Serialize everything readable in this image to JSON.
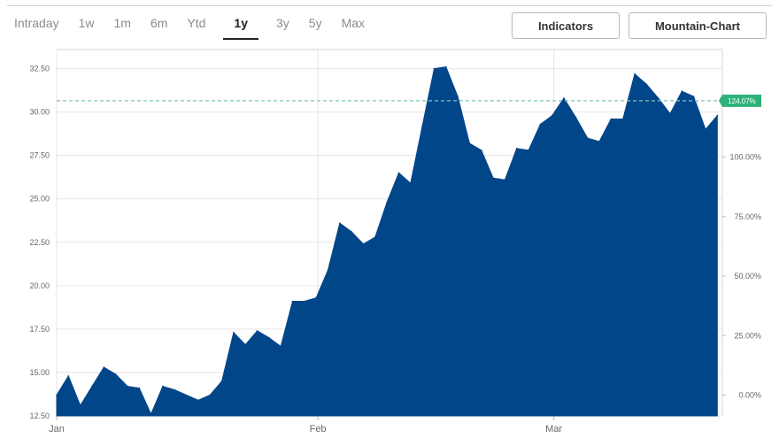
{
  "tabs": [
    {
      "label": "Intraday"
    },
    {
      "label": "1w"
    },
    {
      "label": "1m"
    },
    {
      "label": "6m"
    },
    {
      "label": "Ytd"
    },
    {
      "label": "1y"
    },
    {
      "label": "3y"
    },
    {
      "label": "5y"
    },
    {
      "label": "Max"
    }
  ],
  "active_tab": "1y",
  "buttons": {
    "indicators": "Indicators",
    "chart_type": "Mountain-Chart"
  },
  "colors": {
    "area": "#02468a",
    "reference_line": "#7fc4bd",
    "badge": "#2db37a",
    "grid": "#e6e6e6"
  },
  "chart_data": {
    "type": "area",
    "title": "",
    "xlabel": "",
    "ylabel": "",
    "ylim": [
      12.5,
      33.6
    ],
    "y_ticks": [
      "12.50",
      "15.00",
      "17.50",
      "20.00",
      "22.50",
      "25.00",
      "27.50",
      "30.00",
      "32.50"
    ],
    "y2_ticks": [
      "0.00%",
      "25.00%",
      "50.00%",
      "75.00%",
      "100.00%"
    ],
    "x_ticks": [
      {
        "label": "Jan",
        "day": 0
      },
      {
        "label": "Feb",
        "day": 31
      },
      {
        "label": "Mar",
        "day": 59
      }
    ],
    "x_range_days": [
      0,
      79
    ],
    "reference_value": 30.65,
    "current_change_label": "124.07%",
    "grid": true,
    "x": [
      0,
      1.4,
      2.8,
      4.2,
      5.6,
      7,
      8.4,
      9.8,
      11.2,
      12.6,
      14,
      15.4,
      16.8,
      18.2,
      19.6,
      21,
      22.4,
      23.8,
      25.2,
      26.6,
      28,
      29.4,
      30.8,
      32.2,
      33.6,
      35,
      36.4,
      37.8,
      39.2,
      40.6,
      42,
      43.4,
      44.8,
      46.2,
      47.6,
      49,
      50.4,
      51.8,
      53.2,
      54.6,
      56,
      57.4,
      58.8,
      60.2,
      61.6,
      63,
      64.4,
      65.8,
      67.2,
      68.6,
      70,
      71.4,
      72.8,
      74.2,
      75.6,
      77,
      78.4
    ],
    "values": [
      13.7,
      14.8,
      13.1,
      14.2,
      15.3,
      14.9,
      14.2,
      14.1,
      12.6,
      14.2,
      14.0,
      13.7,
      13.4,
      13.7,
      14.5,
      17.3,
      16.6,
      17.4,
      17.0,
      16.5,
      19.1,
      19.1,
      19.3,
      20.9,
      23.6,
      23.1,
      22.4,
      22.8,
      24.8,
      26.5,
      25.9,
      29.2,
      32.5,
      32.6,
      30.9,
      28.2,
      27.8,
      26.2,
      26.1,
      27.9,
      27.8,
      29.3,
      29.8,
      30.8,
      29.7,
      28.5,
      28.3,
      29.6,
      29.6,
      32.2,
      31.6,
      30.8,
      29.9,
      31.2,
      30.9,
      29.0,
      29.8
    ]
  }
}
